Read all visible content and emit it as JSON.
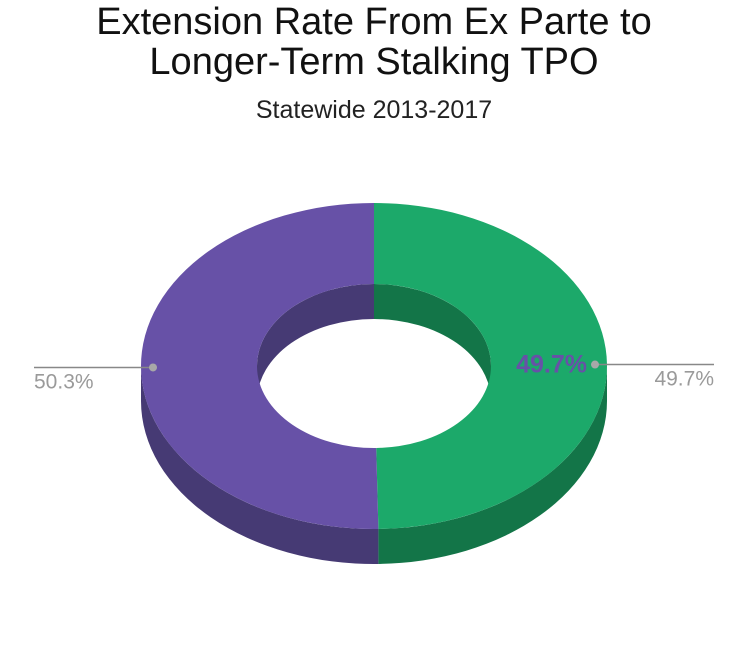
{
  "chart_data": {
    "type": "pie",
    "subtype": "3d-donut",
    "title_lines": [
      "Extension Rate From Ex Parte to",
      "Longer-Term Stalking TPO"
    ],
    "subtitle": "Statewide 2013-2017",
    "slices": [
      {
        "value": 49.7,
        "label": "49.7%",
        "color": "#1ca96a",
        "side_color": "#137548",
        "inner_label": true
      },
      {
        "value": 50.3,
        "label": "50.3%",
        "color": "#6751a7",
        "side_color": "#463a74",
        "inner_label": false
      }
    ],
    "inner_label_color": "#6751a7",
    "leader_color": "#888888"
  }
}
